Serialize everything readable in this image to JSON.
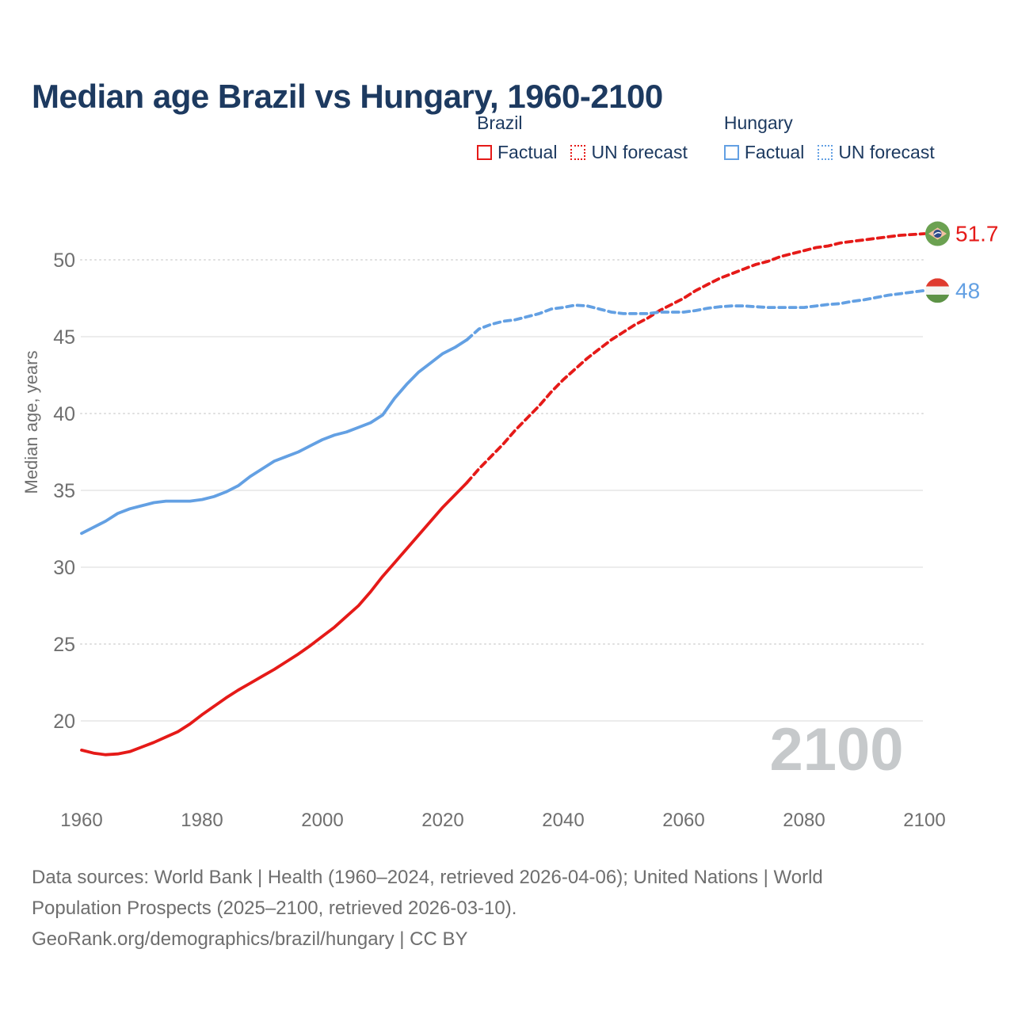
{
  "title": "Median age Brazil vs Hungary, 1960-2100",
  "legend": {
    "groups": [
      {
        "label": "Brazil",
        "items": [
          {
            "label": "Factual",
            "style": "solid",
            "color": "#e51a18"
          },
          {
            "label": "UN forecast",
            "style": "dotted",
            "color": "#e51a18"
          }
        ]
      },
      {
        "label": "Hungary",
        "items": [
          {
            "label": "Factual",
            "style": "solid",
            "color": "#63a0e3"
          },
          {
            "label": "UN forecast",
            "style": "dotted",
            "color": "#63a0e3"
          }
        ]
      }
    ]
  },
  "chart_data": {
    "type": "line",
    "title": "Median age Brazil vs Hungary, 1960-2100",
    "xlabel": "",
    "ylabel": "Median age, years",
    "xlim": [
      1952,
      2112
    ],
    "ylim": [
      16.5,
      53
    ],
    "grid": "horizontal",
    "legend_position": "top-right",
    "watermark": "2100",
    "x_ticks": [
      1960,
      1980,
      2000,
      2020,
      2040,
      2060,
      2080,
      2100
    ],
    "y_ticks": [
      {
        "value": 50,
        "style": "dotted"
      },
      {
        "value": 45,
        "style": "solid"
      },
      {
        "value": 40,
        "style": "dotted"
      },
      {
        "value": 35,
        "style": "solid"
      },
      {
        "value": 30,
        "style": "solid"
      },
      {
        "value": 25,
        "style": "dotted"
      },
      {
        "value": 20,
        "style": "solid"
      }
    ],
    "series": [
      {
        "name": "Brazil Factual",
        "color": "#e51a18",
        "dash": "solid",
        "x": [
          1960,
          1962,
          1964,
          1966,
          1968,
          1970,
          1972,
          1974,
          1976,
          1978,
          1980,
          1982,
          1984,
          1986,
          1988,
          1990,
          1992,
          1994,
          1996,
          1998,
          2000,
          2002,
          2004,
          2006,
          2008,
          2010,
          2012,
          2014,
          2016,
          2018,
          2020,
          2022,
          2024
        ],
        "y": [
          18.1,
          17.9,
          17.8,
          17.85,
          18.0,
          18.3,
          18.6,
          18.95,
          19.3,
          19.8,
          20.4,
          20.95,
          21.5,
          22.0,
          22.45,
          22.9,
          23.35,
          23.85,
          24.35,
          24.9,
          25.5,
          26.1,
          26.8,
          27.5,
          28.4,
          29.4,
          30.3,
          31.2,
          32.1,
          33.0,
          33.9,
          34.7,
          35.5
        ]
      },
      {
        "name": "Brazil UN forecast",
        "color": "#e51a18",
        "dash": "dashed",
        "x": [
          2024,
          2026,
          2028,
          2030,
          2032,
          2034,
          2036,
          2038,
          2040,
          2042,
          2044,
          2046,
          2048,
          2050,
          2052,
          2054,
          2056,
          2058,
          2060,
          2062,
          2064,
          2066,
          2068,
          2070,
          2072,
          2074,
          2076,
          2078,
          2080,
          2082,
          2084,
          2086,
          2088,
          2090,
          2092,
          2094,
          2096,
          2098,
          2100
        ],
        "y": [
          35.5,
          36.4,
          37.2,
          38.0,
          38.9,
          39.7,
          40.5,
          41.4,
          42.2,
          42.9,
          43.6,
          44.2,
          44.8,
          45.3,
          45.8,
          46.2,
          46.7,
          47.1,
          47.5,
          48.0,
          48.4,
          48.8,
          49.1,
          49.4,
          49.7,
          49.9,
          50.2,
          50.4,
          50.6,
          50.8,
          50.9,
          51.1,
          51.2,
          51.3,
          51.4,
          51.5,
          51.6,
          51.65,
          51.7
        ]
      },
      {
        "name": "Hungary Factual",
        "color": "#63a0e3",
        "dash": "solid",
        "x": [
          1960,
          1962,
          1964,
          1966,
          1968,
          1970,
          1972,
          1974,
          1976,
          1978,
          1980,
          1982,
          1984,
          1986,
          1988,
          1990,
          1992,
          1994,
          1996,
          1998,
          2000,
          2002,
          2004,
          2006,
          2008,
          2010,
          2012,
          2014,
          2016,
          2018,
          2020,
          2022,
          2024
        ],
        "y": [
          32.2,
          32.6,
          33.0,
          33.5,
          33.8,
          34.0,
          34.2,
          34.3,
          34.3,
          34.3,
          34.4,
          34.6,
          34.9,
          35.3,
          35.9,
          36.4,
          36.9,
          37.2,
          37.5,
          37.9,
          38.3,
          38.6,
          38.8,
          39.1,
          39.4,
          39.9,
          41.0,
          41.9,
          42.7,
          43.3,
          43.9,
          44.3,
          44.8
        ]
      },
      {
        "name": "Hungary UN forecast",
        "color": "#63a0e3",
        "dash": "dashed",
        "x": [
          2024,
          2026,
          2028,
          2030,
          2032,
          2034,
          2036,
          2038,
          2040,
          2042,
          2044,
          2046,
          2048,
          2050,
          2052,
          2054,
          2056,
          2058,
          2060,
          2062,
          2064,
          2066,
          2068,
          2070,
          2072,
          2074,
          2076,
          2078,
          2080,
          2082,
          2084,
          2086,
          2088,
          2090,
          2092,
          2094,
          2096,
          2098,
          2100
        ],
        "y": [
          44.8,
          45.5,
          45.8,
          46.0,
          46.1,
          46.3,
          46.5,
          46.8,
          46.9,
          47.05,
          47.0,
          46.8,
          46.6,
          46.5,
          46.5,
          46.5,
          46.6,
          46.6,
          46.6,
          46.7,
          46.85,
          46.95,
          47.0,
          47.0,
          46.95,
          46.9,
          46.9,
          46.9,
          46.9,
          47.0,
          47.1,
          47.15,
          47.3,
          47.4,
          47.55,
          47.7,
          47.8,
          47.9,
          48.0
        ]
      }
    ],
    "end_labels": [
      {
        "series": "Brazil",
        "label": "51.7",
        "value": 51.7,
        "color": "#e51a18",
        "flag": "brazil"
      },
      {
        "series": "Hungary",
        "label": "48",
        "value": 48,
        "color": "#63a0e3",
        "flag": "hungary"
      }
    ]
  },
  "footer": {
    "line1": "Data sources: World Bank | Health (1960–2024, retrieved 2026-04-06); United Nations | World",
    "line2": "Population Prospects (2025–2100, retrieved 2026-03-10).",
    "line3": "GeoRank.org/demographics/brazil/hungary | CC BY"
  },
  "colors": {
    "brazil": "#e51a18",
    "hungary": "#63a0e3",
    "title_text": "#1d3a60",
    "axis_text": "#6f6f6f",
    "grid_line": "#ececec",
    "watermark_text": "#c6c9cb"
  }
}
